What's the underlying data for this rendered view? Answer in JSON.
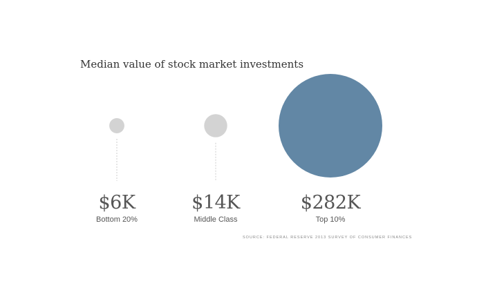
{
  "chart_data": {
    "type": "bubble",
    "title": "Median value of stock market investments",
    "categories": [
      "Bottom 20%",
      "Middle Class",
      "Top 10%"
    ],
    "values": [
      6,
      14,
      282
    ],
    "value_unit": "thousand USD",
    "value_labels": [
      "$6K",
      "$14K",
      "$282K"
    ],
    "source": "SOURCE: FEDERAL RESERVE 2013 SURVEY OF CONSUMER FINANCES",
    "grid": false,
    "legend": "none"
  },
  "colors": {
    "small_bubble": "#d3d3d3",
    "large_bubble": "#6287a5",
    "leader_line": "#cccccc",
    "text": "#555555"
  }
}
